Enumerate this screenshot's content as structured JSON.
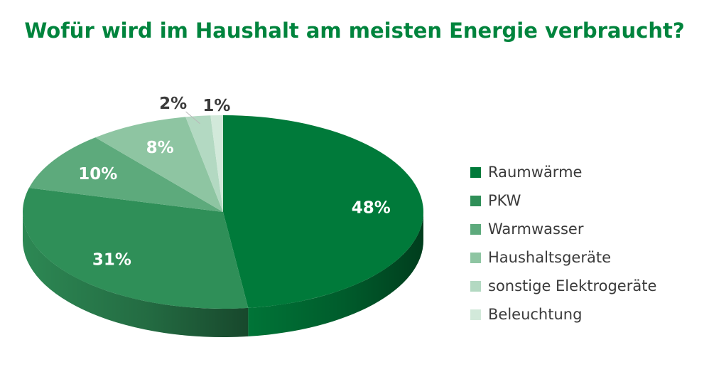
{
  "colors": {
    "title": "#00843d",
    "light_label": "#ffffff",
    "dark_label": "#3a3a3a"
  },
  "chart_data": {
    "type": "pie",
    "title": "Wofür wird im Haushalt am meisten Energie verbraucht?",
    "legend_position": "right",
    "slices": [
      {
        "label": "Raumwärme",
        "value": 48,
        "display": "48%",
        "color": "#007a3a"
      },
      {
        "label": "PKW",
        "value": 31,
        "display": "31%",
        "color": "#2f8f58"
      },
      {
        "label": "Warmwasser",
        "value": 10,
        "display": "10%",
        "color": "#5daa7c"
      },
      {
        "label": "Haushaltsgeräte",
        "value": 8,
        "display": "8%",
        "color": "#8ec5a2"
      },
      {
        "label": "sonstige Elektrogeräte",
        "value": 2,
        "display": "2%",
        "color": "#b3d9c2"
      },
      {
        "label": "Beleuchtung",
        "value": 1,
        "display": "1%",
        "color": "#d2e9da"
      }
    ]
  }
}
